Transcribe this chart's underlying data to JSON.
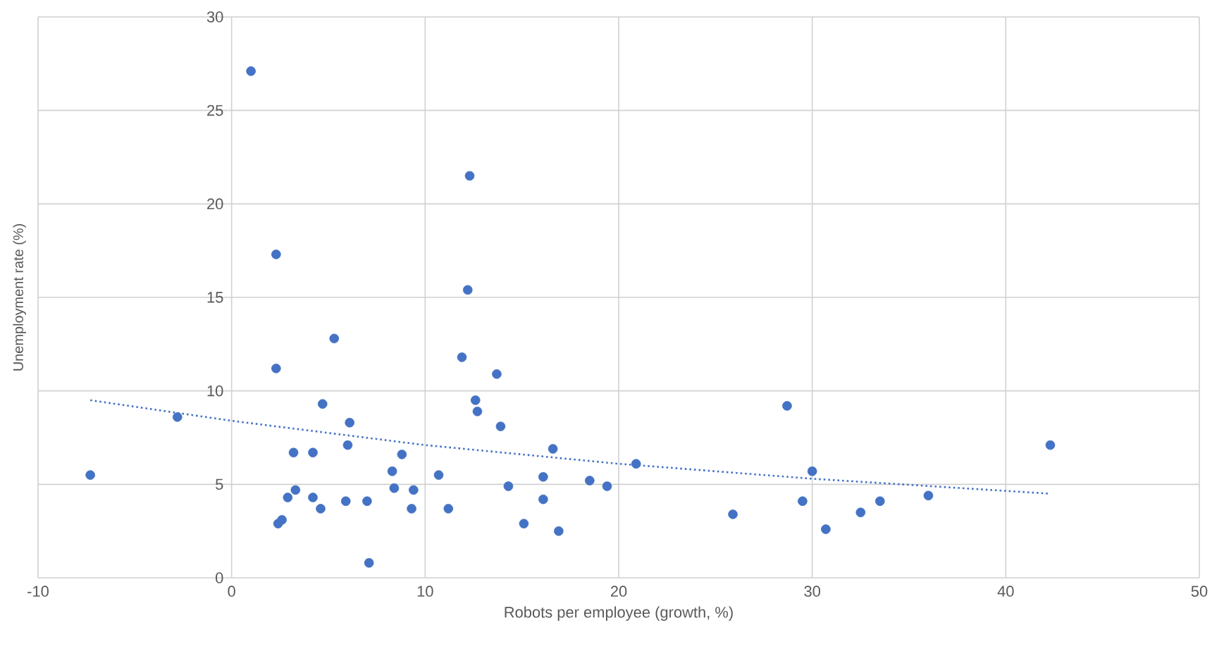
{
  "chart_data": {
    "type": "scatter",
    "xlabel": "Robots per employee (growth, %)",
    "ylabel": "Unemployment rate (%)",
    "xlim": [
      -10,
      50
    ],
    "ylim": [
      0,
      30
    ],
    "xticks": [
      -10,
      0,
      10,
      20,
      30,
      40,
      50
    ],
    "yticks": [
      0,
      5,
      10,
      15,
      20,
      25,
      30
    ],
    "grid": true,
    "series": [
      {
        "color": "#4472c4",
        "marker": "circle",
        "x": [
          -7.3,
          -2.8,
          1.0,
          2.3,
          2.3,
          2.4,
          2.6,
          2.9,
          3.2,
          3.3,
          4.2,
          4.2,
          4.6,
          4.7,
          5.3,
          5.9,
          6.1,
          6.0,
          7.0,
          7.1,
          8.3,
          8.4,
          8.8,
          9.3,
          9.4,
          10.7,
          11.2,
          11.9,
          12.2,
          12.3,
          12.6,
          12.7,
          13.7,
          13.9,
          14.3,
          15.1,
          16.1,
          16.1,
          16.6,
          16.9,
          18.5,
          19.4,
          20.9,
          25.9,
          28.7,
          29.5,
          30.0,
          30.7,
          32.5,
          33.5,
          36.0,
          42.3
        ],
        "values": [
          5.5,
          8.6,
          27.1,
          17.3,
          11.2,
          2.9,
          3.1,
          4.3,
          6.7,
          4.7,
          6.7,
          4.3,
          3.7,
          9.3,
          12.8,
          4.1,
          8.3,
          7.1,
          4.1,
          0.8,
          5.7,
          4.8,
          6.6,
          3.7,
          4.7,
          5.5,
          3.7,
          11.8,
          15.4,
          21.5,
          9.5,
          8.9,
          10.9,
          8.1,
          4.9,
          2.9,
          5.4,
          4.2,
          6.9,
          2.5,
          5.2,
          4.9,
          6.1,
          3.4,
          9.2,
          4.1,
          5.7,
          2.6,
          3.5,
          4.1,
          4.4,
          7.1
        ]
      },
      {
        "type": "line",
        "color": "#4472c4",
        "line_style": "dotted",
        "marker": "none",
        "x": [
          -7.3,
          0,
          10,
          20,
          30,
          42.3
        ],
        "values": [
          9.5,
          8.4,
          7.1,
          6.1,
          5.3,
          4.5
        ]
      }
    ]
  }
}
